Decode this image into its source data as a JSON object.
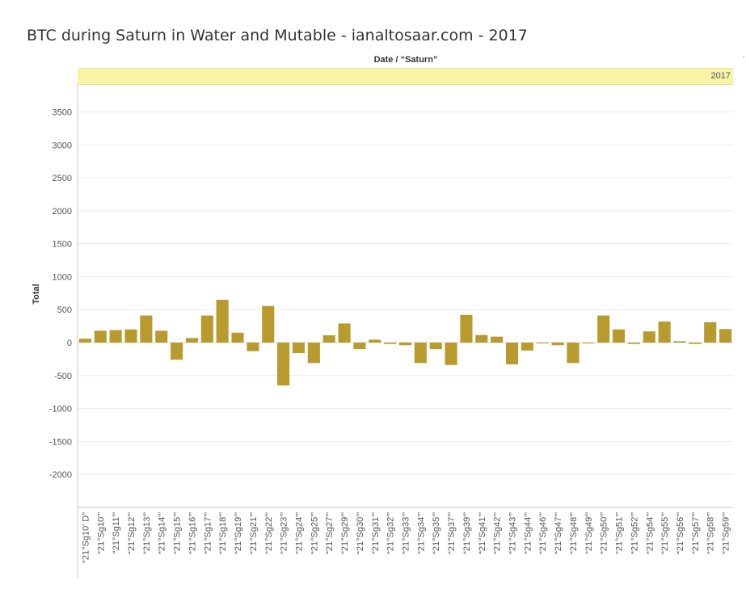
{
  "title": "BTC during Saturn in Water and Mutable - ianaltosaar.com - 2017",
  "column_header": "Date / “Saturn”",
  "band_label": "2017",
  "right_edge_mark": "‘",
  "colors": {
    "bar": "#b89a2e",
    "grid": "#ececec",
    "zero_line": "#d8d8d8",
    "band": "#f7f5a5"
  },
  "chart_data": {
    "type": "bar",
    "title": "BTC during Saturn in Water and Mutable - ianaltosaar.com - 2017",
    "xlabel": "",
    "ylabel": "Total",
    "ylim": [
      -2500,
      3900
    ],
    "yticks": [
      3500,
      3000,
      2500,
      2000,
      1500,
      1000,
      500,
      0,
      -500,
      -1000,
      -1500,
      -2000
    ],
    "grid": true,
    "categories": [
      "“21°Sg10' D”",
      "“21°Sg10'”",
      "“21°Sg11'”",
      "“21°Sg12'”",
      "“21°Sg13'”",
      "“21°Sg14'”",
      "“21°Sg15'”",
      "“21°Sg16'”",
      "“21°Sg17'”",
      "“21°Sg18'”",
      "“21°Sg19'”",
      "“21°Sg21'”",
      "“21°Sg22'”",
      "“21°Sg23'”",
      "“21°Sg24'”",
      "“21°Sg25'”",
      "“21°Sg27'”",
      "“21°Sg29'”",
      "“21°Sg30'”",
      "“21°Sg31'”",
      "“21°Sg32'”",
      "“21°Sg33'”",
      "“21°Sg34'”",
      "“21°Sg35'”",
      "“21°Sg37'”",
      "“21°Sg39'”",
      "“21°Sg41'”",
      "“21°Sg42'”",
      "“21°Sg43'”",
      "“21°Sg44'”",
      "“21°Sg46'”",
      "“21°Sg47'”",
      "“21°Sg48'”",
      "“21°Sg49'”",
      "“21°Sg50'”",
      "“21°Sg51'”",
      "“21°Sg52'”",
      "“21°Sg54'”",
      "“21°Sg55'”",
      "“21°Sg56'”",
      "“21°Sg57'”",
      "“21°Sg58'”",
      "“21°Sg59'”"
    ],
    "values": [
      60,
      180,
      190,
      200,
      410,
      180,
      -260,
      70,
      410,
      650,
      150,
      -130,
      555,
      -650,
      -160,
      -310,
      110,
      290,
      -100,
      45,
      -20,
      -40,
      -310,
      -100,
      -340,
      420,
      115,
      90,
      -330,
      -120,
      -10,
      -40,
      -310,
      -10,
      410,
      200,
      -20,
      170,
      320,
      20,
      -20,
      310,
      205
    ]
  }
}
